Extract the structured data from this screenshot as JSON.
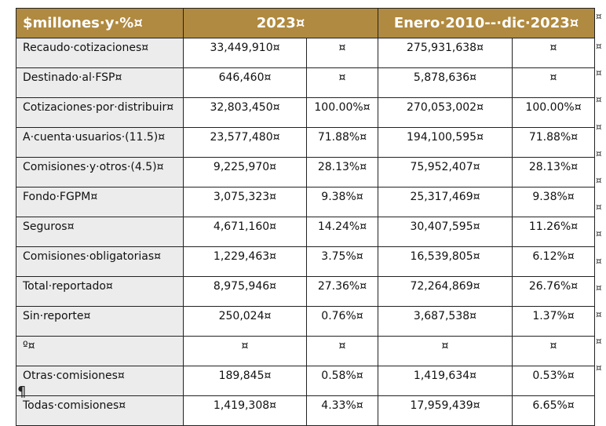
{
  "header": [
    "$millones·y·%¤",
    "2023¤",
    "Enero·2010--·dic·2023¤"
  ],
  "row_end_mark": "¤",
  "rows": [
    [
      "Recaudo·cotizaciones¤",
      "33,449,910¤",
      "¤",
      "275,931,638¤",
      "¤"
    ],
    [
      "Destinado·al·FSP¤",
      "646,460¤",
      "¤",
      "5,878,636¤",
      "¤"
    ],
    [
      "Cotizaciones·por·distribuir¤",
      "32,803,450¤",
      "100.00%¤",
      "270,053,002¤",
      "100.00%¤"
    ],
    [
      "A·cuenta·usuarios·(11.5)¤",
      "23,577,480¤",
      "71.88%¤",
      "194,100,595¤",
      "71.88%¤"
    ],
    [
      "Comisiones·y·otros·(4.5)¤",
      "9,225,970¤",
      "28.13%¤",
      "75,952,407¤",
      "28.13%¤"
    ],
    [
      "Fondo·FGPM¤",
      "3,075,323¤",
      "9.38%¤",
      "25,317,469¤",
      "9.38%¤"
    ],
    [
      "Seguros¤",
      "4,671,160¤",
      "14.24%¤",
      "30,407,595¤",
      "11.26%¤"
    ],
    [
      "Comisiones·obligatorias¤",
      "1,229,463¤",
      "3.75%¤",
      "16,539,805¤",
      "6.12%¤"
    ],
    [
      "Total·reportado¤",
      "8,975,946¤",
      "27.36%¤",
      "72,264,869¤",
      "26.76%¤"
    ],
    [
      "Sin·reporte¤",
      "250,024¤",
      "0.76%¤",
      "3,687,538¤",
      "1.37%¤"
    ],
    [
      "º¤",
      "¤",
      "¤",
      "¤",
      "¤"
    ],
    [
      "Otras·comisiones¤",
      "189,845¤",
      "0.58%¤",
      "1,419,634¤",
      "0.53%¤"
    ],
    [
      "Todas·comisiones¤",
      "1,419,308¤",
      "4.33%¤",
      "17,959,439¤",
      "6.65%¤"
    ]
  ],
  "paragraph_mark": "¶",
  "colors": {
    "header_bg": "#b08a40",
    "label_bg": "#ececec"
  }
}
